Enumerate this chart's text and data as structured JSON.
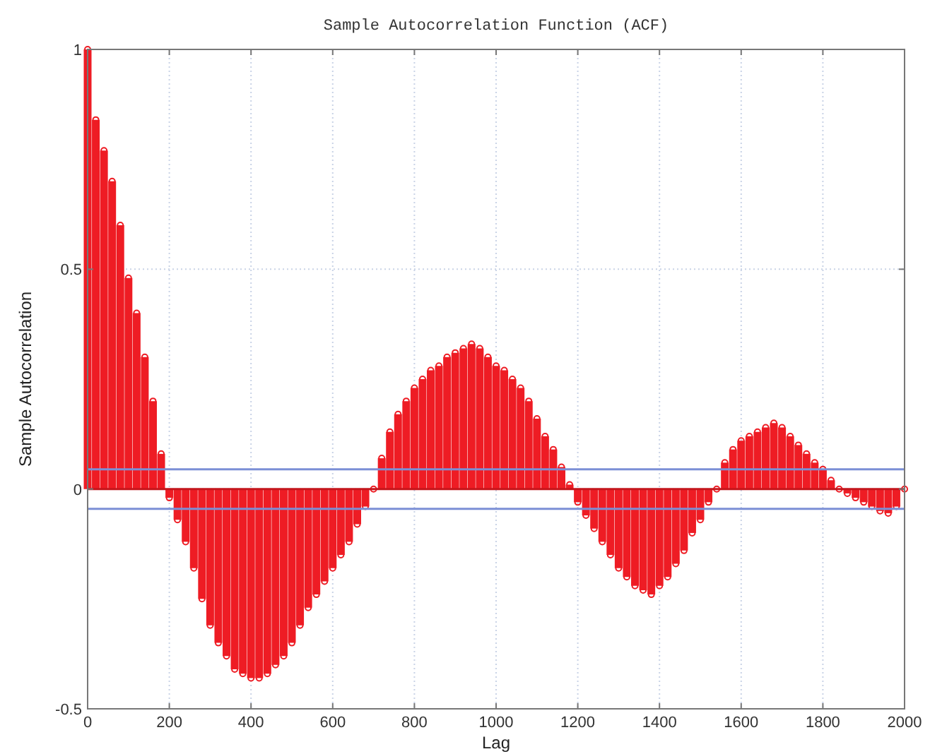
{
  "chart_data": {
    "type": "lollipop",
    "title": "Sample Autocorrelation Function (ACF)",
    "xlabel": "Lag",
    "ylabel": "Sample Autocorrelation",
    "xlim": [
      0,
      2000
    ],
    "xticks": [
      0,
      200,
      400,
      600,
      800,
      1000,
      1200,
      1400,
      1600,
      1800,
      2000
    ],
    "ylim": [
      -0.5,
      1
    ],
    "yticks": [
      -0.5,
      0,
      0.5,
      1
    ],
    "grid": true,
    "marker": "circle",
    "ref_lines": [
      {
        "axis": "y",
        "value": 0,
        "color": "#c4161c"
      },
      {
        "axis": "y",
        "value": 0.045,
        "color": "#7b8fd6"
      },
      {
        "axis": "y",
        "value": -0.045,
        "color": "#7b8fd6"
      }
    ],
    "series": [
      {
        "color": "#ee1c24",
        "x": [
          0,
          20,
          40,
          60,
          80,
          100,
          120,
          140,
          160,
          180,
          200,
          220,
          240,
          260,
          280,
          300,
          320,
          340,
          360,
          380,
          400,
          420,
          440,
          460,
          480,
          500,
          520,
          540,
          560,
          580,
          600,
          620,
          640,
          660,
          680,
          700,
          720,
          740,
          760,
          780,
          800,
          820,
          840,
          860,
          880,
          900,
          920,
          940,
          960,
          980,
          1000,
          1020,
          1040,
          1060,
          1080,
          1100,
          1120,
          1140,
          1160,
          1180,
          1200,
          1220,
          1240,
          1260,
          1280,
          1300,
          1320,
          1340,
          1360,
          1380,
          1400,
          1420,
          1440,
          1460,
          1480,
          1500,
          1520,
          1540,
          1560,
          1580,
          1600,
          1620,
          1640,
          1660,
          1680,
          1700,
          1720,
          1740,
          1760,
          1780,
          1800,
          1820,
          1840,
          1860,
          1880,
          1900,
          1920,
          1940,
          1960,
          1980,
          2000
        ],
        "values": [
          1.0,
          0.84,
          0.77,
          0.7,
          0.6,
          0.48,
          0.4,
          0.3,
          0.2,
          0.08,
          -0.02,
          -0.07,
          -0.12,
          -0.18,
          -0.25,
          -0.31,
          -0.35,
          -0.38,
          -0.41,
          -0.42,
          -0.43,
          -0.43,
          -0.42,
          -0.4,
          -0.38,
          -0.35,
          -0.31,
          -0.27,
          -0.24,
          -0.21,
          -0.18,
          -0.15,
          -0.12,
          -0.08,
          -0.04,
          0.0,
          0.07,
          0.13,
          0.17,
          0.2,
          0.23,
          0.25,
          0.27,
          0.28,
          0.3,
          0.31,
          0.32,
          0.33,
          0.32,
          0.3,
          0.28,
          0.27,
          0.25,
          0.23,
          0.2,
          0.16,
          0.12,
          0.09,
          0.05,
          0.01,
          -0.03,
          -0.06,
          -0.09,
          -0.12,
          -0.15,
          -0.18,
          -0.2,
          -0.22,
          -0.23,
          -0.24,
          -0.22,
          -0.2,
          -0.17,
          -0.14,
          -0.1,
          -0.07,
          -0.03,
          0.0,
          0.06,
          0.09,
          0.11,
          0.12,
          0.13,
          0.14,
          0.15,
          0.14,
          0.12,
          0.1,
          0.08,
          0.06,
          0.045,
          0.02,
          0.0,
          -0.01,
          -0.02,
          -0.03,
          -0.04,
          -0.05,
          -0.055,
          -0.04,
          0.0
        ]
      }
    ]
  }
}
